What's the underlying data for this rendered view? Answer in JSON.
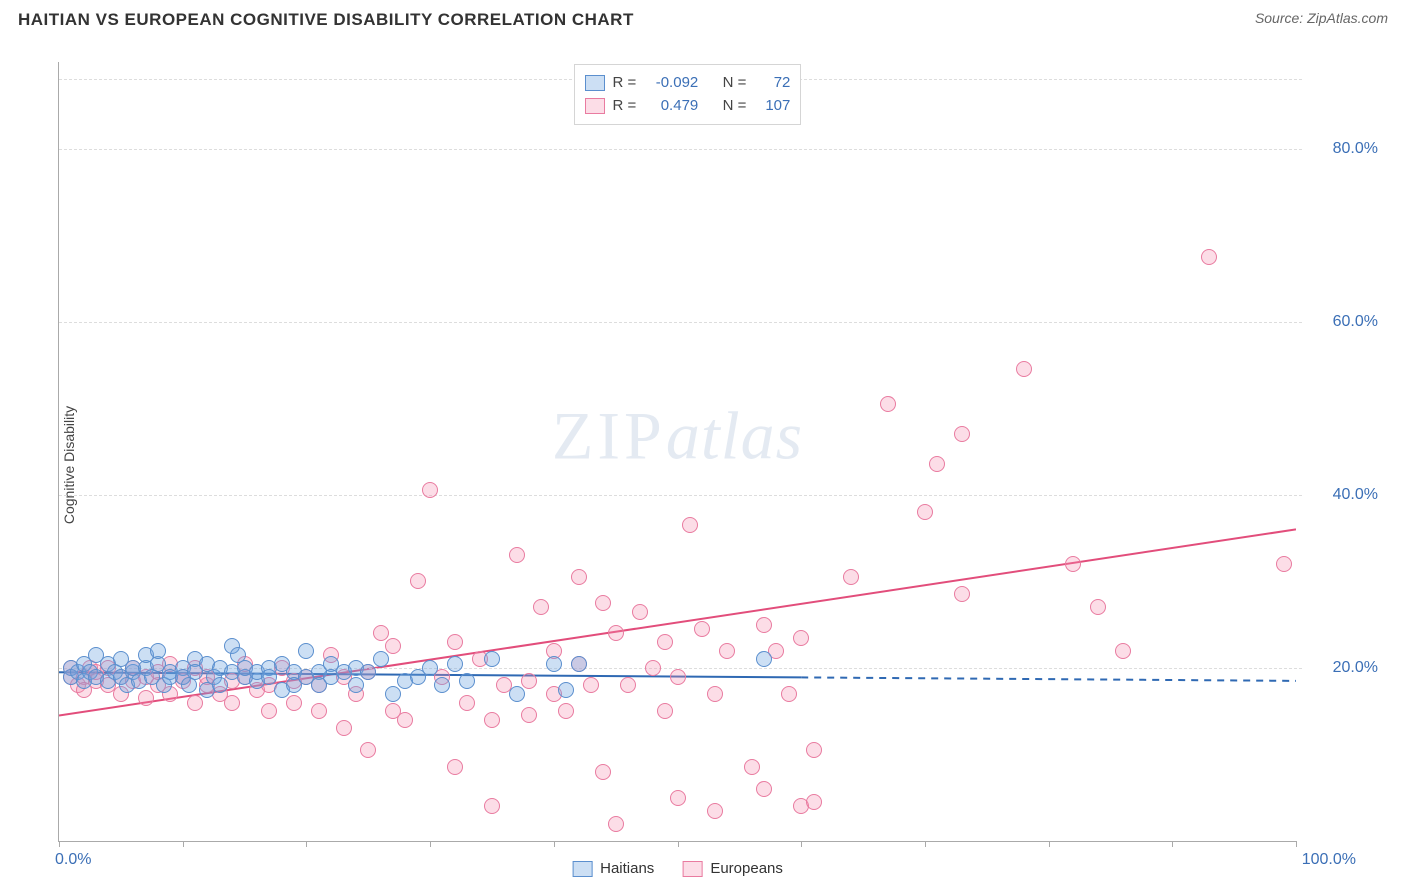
{
  "header": {
    "title": "HAITIAN VS EUROPEAN COGNITIVE DISABILITY CORRELATION CHART",
    "source": "Source: ZipAtlas.com"
  },
  "ylabel": "Cognitive Disability",
  "watermark": {
    "part1": "ZIP",
    "part2": "atlas"
  },
  "chart": {
    "type": "scatter",
    "background_color": "#ffffff",
    "grid_color": "#dddddd",
    "axis_color": "#aaaaaa",
    "label_color": "#3b6fb6",
    "label_fontsize": 16,
    "xlim": [
      0,
      100
    ],
    "ylim": [
      0,
      90
    ],
    "x_ticks": [
      0,
      10,
      20,
      30,
      40,
      50,
      60,
      70,
      80,
      90,
      100
    ],
    "x_tick_labels_shown": {
      "0": "0.0%",
      "100": "100.0%"
    },
    "y_ticks": [
      20,
      40,
      60,
      80
    ],
    "y_tick_labels": {
      "20": "20.0%",
      "40": "40.0%",
      "60": "60.0%",
      "80": "80.0%"
    },
    "marker_radius": 8,
    "marker_border_width": 1.2,
    "series": {
      "haitians": {
        "label": "Haitians",
        "fill": "rgba(108,163,224,0.35)",
        "stroke": "#5b8fce",
        "R": "-0.092",
        "N": "72",
        "trend": {
          "x1": 0,
          "y1": 19.5,
          "x2": 60,
          "y2": 19.0,
          "x2_ext": 100,
          "y2_ext": 18.5,
          "color": "#2f69b3",
          "width": 2,
          "dash_after_x": 60
        },
        "points": [
          [
            1,
            20.0
          ],
          [
            1,
            19.0
          ],
          [
            1.5,
            19.5
          ],
          [
            2,
            20.5
          ],
          [
            2,
            18.5
          ],
          [
            2.5,
            19.5
          ],
          [
            3,
            21.5
          ],
          [
            3,
            19.0
          ],
          [
            4,
            20.5
          ],
          [
            4,
            18.5
          ],
          [
            4.5,
            19.5
          ],
          [
            5,
            19.0
          ],
          [
            5,
            21.0
          ],
          [
            5.5,
            18.0
          ],
          [
            6,
            19.5
          ],
          [
            6,
            20.0
          ],
          [
            6.5,
            18.5
          ],
          [
            7,
            20.0
          ],
          [
            7,
            21.5
          ],
          [
            7.5,
            19.0
          ],
          [
            8,
            20.5
          ],
          [
            8,
            22.0
          ],
          [
            8.5,
            18.0
          ],
          [
            9,
            19.5
          ],
          [
            9,
            19.0
          ],
          [
            10,
            20.0
          ],
          [
            10,
            19.0
          ],
          [
            10.5,
            18.0
          ],
          [
            11,
            21.0
          ],
          [
            11,
            19.5
          ],
          [
            12,
            20.5
          ],
          [
            12,
            17.5
          ],
          [
            12.5,
            19.0
          ],
          [
            13,
            20.0
          ],
          [
            13,
            18.0
          ],
          [
            14,
            22.5
          ],
          [
            14,
            19.5
          ],
          [
            14.5,
            21.5
          ],
          [
            15,
            19.0
          ],
          [
            15,
            20.0
          ],
          [
            16,
            18.5
          ],
          [
            16,
            19.5
          ],
          [
            17,
            20.0
          ],
          [
            17,
            19.0
          ],
          [
            18,
            20.5
          ],
          [
            18,
            17.5
          ],
          [
            19,
            19.5
          ],
          [
            19,
            18.0
          ],
          [
            20,
            19.0
          ],
          [
            20,
            22.0
          ],
          [
            21,
            19.5
          ],
          [
            21,
            18.0
          ],
          [
            22,
            20.5
          ],
          [
            22,
            19.0
          ],
          [
            23,
            19.5
          ],
          [
            24,
            18.0
          ],
          [
            24,
            20.0
          ],
          [
            25,
            19.5
          ],
          [
            26,
            21.0
          ],
          [
            27,
            17.0
          ],
          [
            28,
            18.5
          ],
          [
            29,
            19.0
          ],
          [
            30,
            20.0
          ],
          [
            31,
            18.0
          ],
          [
            32,
            20.5
          ],
          [
            33,
            18.5
          ],
          [
            35,
            21.0
          ],
          [
            37,
            17.0
          ],
          [
            40,
            20.5
          ],
          [
            41,
            17.5
          ],
          [
            42,
            20.5
          ],
          [
            57,
            21.0
          ]
        ]
      },
      "europeans": {
        "label": "Europeans",
        "fill": "rgba(244,143,177,0.30)",
        "stroke": "#e97ba0",
        "R": "0.479",
        "N": "107",
        "trend": {
          "x1": 0,
          "y1": 14.5,
          "x2": 100,
          "y2": 36.0,
          "color": "#e24d7b",
          "width": 2
        },
        "points": [
          [
            1,
            19.0
          ],
          [
            1,
            20.0
          ],
          [
            1.5,
            18.0
          ],
          [
            2,
            19.0
          ],
          [
            2,
            17.5
          ],
          [
            2.5,
            20.0
          ],
          [
            3,
            18.5
          ],
          [
            3,
            19.5
          ],
          [
            4,
            18.0
          ],
          [
            4,
            20.0
          ],
          [
            5,
            19.0
          ],
          [
            5,
            17.0
          ],
          [
            6,
            20.0
          ],
          [
            6,
            18.5
          ],
          [
            7,
            19.0
          ],
          [
            7,
            16.5
          ],
          [
            8,
            18.0
          ],
          [
            8,
            19.5
          ],
          [
            9,
            17.0
          ],
          [
            9,
            20.5
          ],
          [
            10,
            18.5
          ],
          [
            10,
            19.0
          ],
          [
            11,
            16.0
          ],
          [
            11,
            20.0
          ],
          [
            12,
            18.0
          ],
          [
            12,
            19.0
          ],
          [
            13,
            17.0
          ],
          [
            14,
            18.5
          ],
          [
            14,
            16.0
          ],
          [
            15,
            19.0
          ],
          [
            15,
            20.5
          ],
          [
            16,
            17.5
          ],
          [
            17,
            18.0
          ],
          [
            17,
            15.0
          ],
          [
            18,
            20.0
          ],
          [
            19,
            18.5
          ],
          [
            19,
            16.0
          ],
          [
            20,
            19.0
          ],
          [
            21,
            15.0
          ],
          [
            21,
            18.0
          ],
          [
            22,
            21.5
          ],
          [
            23,
            13.0
          ],
          [
            23,
            19.0
          ],
          [
            24,
            17.0
          ],
          [
            25,
            19.5
          ],
          [
            25,
            10.5
          ],
          [
            26,
            24.0
          ],
          [
            27,
            15.0
          ],
          [
            27,
            22.5
          ],
          [
            28,
            14.0
          ],
          [
            29,
            30.0
          ],
          [
            30,
            40.5
          ],
          [
            31,
            19.0
          ],
          [
            32,
            8.5
          ],
          [
            32,
            23.0
          ],
          [
            33,
            16.0
          ],
          [
            34,
            21.0
          ],
          [
            35,
            14.0
          ],
          [
            35,
            4.0
          ],
          [
            36,
            18.0
          ],
          [
            37,
            33.0
          ],
          [
            38,
            18.5
          ],
          [
            38,
            14.5
          ],
          [
            39,
            27.0
          ],
          [
            40,
            17.0
          ],
          [
            40,
            22.0
          ],
          [
            41,
            15.0
          ],
          [
            42,
            30.5
          ],
          [
            42,
            20.5
          ],
          [
            43,
            18.0
          ],
          [
            44,
            27.5
          ],
          [
            44,
            8.0
          ],
          [
            45,
            2.0
          ],
          [
            45,
            24.0
          ],
          [
            46,
            18.0
          ],
          [
            47,
            26.5
          ],
          [
            48,
            20.0
          ],
          [
            49,
            15.0
          ],
          [
            49,
            23.0
          ],
          [
            50,
            5.0
          ],
          [
            50,
            19.0
          ],
          [
            51,
            36.5
          ],
          [
            52,
            24.5
          ],
          [
            53,
            17.0
          ],
          [
            53,
            3.5
          ],
          [
            54,
            22.0
          ],
          [
            56,
            8.5
          ],
          [
            57,
            6.0
          ],
          [
            57,
            25.0
          ],
          [
            58,
            22.0
          ],
          [
            59,
            17.0
          ],
          [
            60,
            4.0
          ],
          [
            60,
            23.5
          ],
          [
            61,
            10.5
          ],
          [
            61,
            4.5
          ],
          [
            64,
            30.5
          ],
          [
            67,
            50.5
          ],
          [
            70,
            38.0
          ],
          [
            71,
            43.5
          ],
          [
            73,
            28.5
          ],
          [
            73,
            47.0
          ],
          [
            78,
            54.5
          ],
          [
            82,
            32.0
          ],
          [
            84,
            27.0
          ],
          [
            93,
            67.5
          ],
          [
            99,
            32.0
          ],
          [
            86,
            22.0
          ]
        ]
      }
    }
  },
  "bottom_legend": {
    "haitians": "Haitians",
    "europeans": "Europeans"
  },
  "statbox_labels": {
    "R": "R =",
    "N": "N ="
  }
}
